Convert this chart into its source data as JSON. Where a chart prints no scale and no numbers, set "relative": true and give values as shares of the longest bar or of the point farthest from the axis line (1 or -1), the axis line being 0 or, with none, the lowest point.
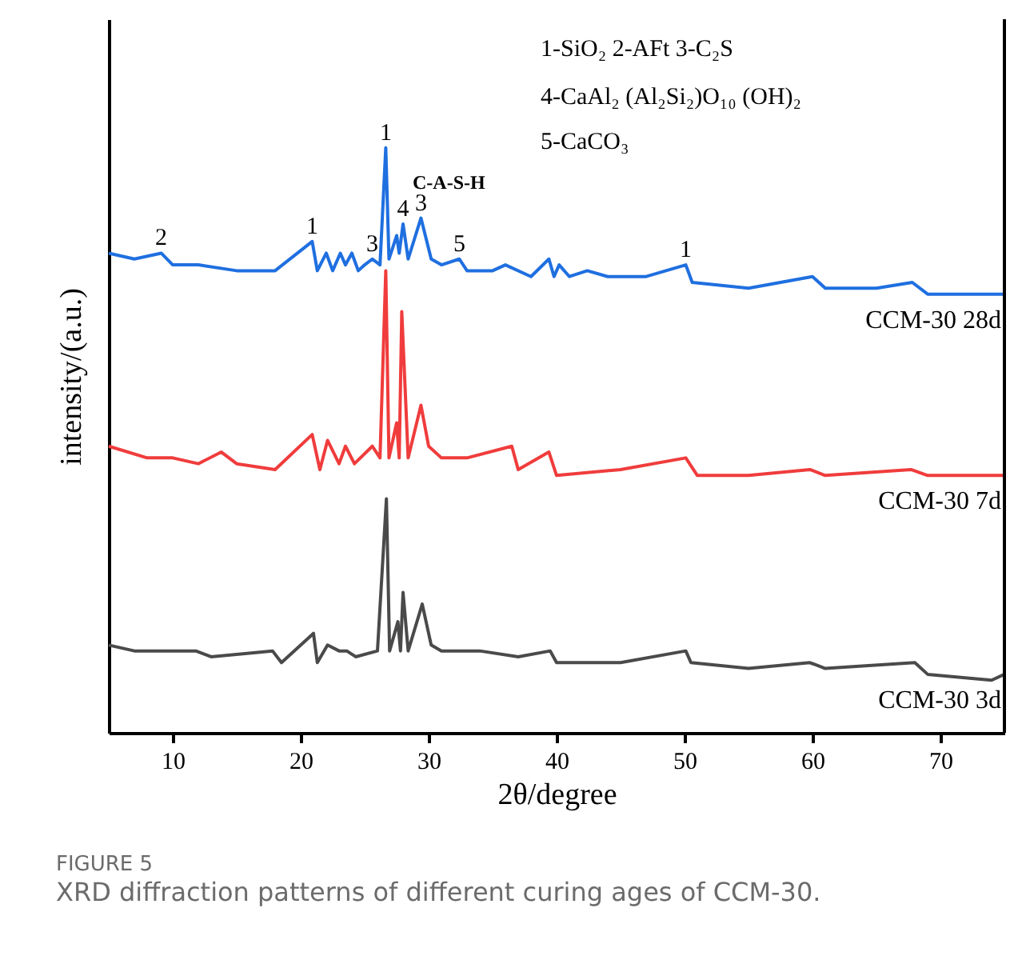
{
  "chart_data": {
    "type": "line",
    "relative": true,
    "title": "FIGURE 5",
    "subtitle": "XRD diffraction patterns of different curing ages of CCM-30.",
    "xlabel": "2θ/degree",
    "ylabel": "intensity/(a.u.)",
    "xlim": [
      5,
      75
    ],
    "xticks": [
      10,
      20,
      30,
      40,
      50,
      60,
      70
    ],
    "tick_labels": "x",
    "grid": false,
    "legend": false,
    "marker": "none",
    "line_style": "solid",
    "series": [
      {
        "name": "CCM-30  28d",
        "color": "#1f6fe0",
        "x": [
          5,
          7,
          9.1,
          10,
          12,
          15,
          18,
          20.9,
          21.3,
          22.0,
          22.5,
          23.1,
          23.5,
          24,
          24.5,
          25,
          25.6,
          26.2,
          26.65,
          26.9,
          27.5,
          27.7,
          28.0,
          28.4,
          29.4,
          30.2,
          31,
          32.4,
          33,
          35,
          36,
          38,
          39.4,
          39.8,
          40.2,
          41,
          42.4,
          44,
          47,
          50.1,
          50.6,
          55,
          60.0,
          61,
          65,
          67.8,
          69,
          72,
          75
        ],
        "values": [
          0.82,
          0.81,
          0.82,
          0.8,
          0.8,
          0.79,
          0.79,
          0.84,
          0.79,
          0.82,
          0.79,
          0.82,
          0.8,
          0.82,
          0.79,
          0.8,
          0.81,
          0.8,
          1.0,
          0.81,
          0.85,
          0.82,
          0.87,
          0.81,
          0.88,
          0.81,
          0.8,
          0.81,
          0.79,
          0.79,
          0.8,
          0.78,
          0.81,
          0.78,
          0.8,
          0.78,
          0.79,
          0.78,
          0.78,
          0.8,
          0.77,
          0.76,
          0.78,
          0.76,
          0.76,
          0.77,
          0.75,
          0.75,
          0.75
        ]
      },
      {
        "name": "CCM-30  7d",
        "color": "#f03c3c",
        "x": [
          5,
          8,
          10,
          12,
          13.8,
          15,
          18,
          20.9,
          21.5,
          22.1,
          23,
          23.5,
          24.2,
          25.6,
          26.2,
          26.65,
          26.9,
          27.5,
          27.7,
          27.9,
          28.4,
          29.4,
          30.0,
          31,
          33,
          36.5,
          37,
          39.4,
          40,
          45,
          50.1,
          51,
          55,
          59.8,
          61,
          67.7,
          69,
          75
        ],
        "values": [
          0.49,
          0.47,
          0.47,
          0.46,
          0.48,
          0.46,
          0.45,
          0.51,
          0.45,
          0.5,
          0.46,
          0.49,
          0.46,
          0.49,
          0.47,
          0.79,
          0.47,
          0.53,
          0.47,
          0.72,
          0.47,
          0.56,
          0.49,
          0.47,
          0.47,
          0.49,
          0.45,
          0.48,
          0.44,
          0.45,
          0.47,
          0.44,
          0.44,
          0.45,
          0.44,
          0.45,
          0.44,
          0.44
        ]
      },
      {
        "name": "CCM-30  3d",
        "color": "#4a4a4a",
        "x": [
          5,
          7,
          9.1,
          10,
          11.8,
          13,
          17.8,
          18.5,
          21.0,
          21.3,
          22.1,
          23,
          23.6,
          24.3,
          26,
          26.7,
          26.95,
          27.6,
          27.8,
          28.0,
          28.4,
          29.5,
          30.2,
          31,
          32,
          34,
          37,
          39.5,
          40,
          45,
          50.1,
          50.5,
          55,
          59.8,
          61,
          68.0,
          69,
          74,
          75
        ],
        "values": [
          0.15,
          0.14,
          0.14,
          0.14,
          0.14,
          0.13,
          0.14,
          0.12,
          0.17,
          0.12,
          0.15,
          0.14,
          0.14,
          0.13,
          0.14,
          0.4,
          0.14,
          0.19,
          0.14,
          0.24,
          0.14,
          0.22,
          0.15,
          0.14,
          0.14,
          0.14,
          0.13,
          0.14,
          0.12,
          0.12,
          0.14,
          0.12,
          0.11,
          0.12,
          0.11,
          0.12,
          0.1,
          0.09,
          0.1
        ]
      }
    ],
    "annotations": [
      "1-SiO₂ 2-AFt 3-C₂S",
      "4-CaAl₂ (Al₂Si₂)O₁₀ (OH)₂",
      "5-CaCO₃",
      "C-A-S-H",
      {
        "text": "2",
        "x": 9.1,
        "y": 0.82
      },
      {
        "text": "1",
        "x": 20.9,
        "y": 0.84
      },
      {
        "text": "3",
        "x": 25.6,
        "y": 0.81
      },
      {
        "text": "1",
        "x": 26.65,
        "y": 1.0
      },
      {
        "text": "4",
        "x": 28.0,
        "y": 0.87
      },
      {
        "text": "3",
        "x": 29.4,
        "y": 0.88
      },
      {
        "text": "5",
        "x": 32.4,
        "y": 0.81
      },
      {
        "text": "1",
        "x": 50.1,
        "y": 0.8
      }
    ]
  }
}
